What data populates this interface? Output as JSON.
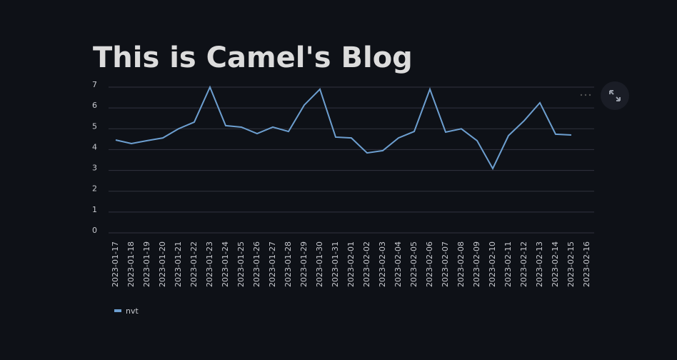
{
  "chart_data": {
    "type": "line",
    "title": "This is Camel's Blog",
    "x": [
      "2023-01-17",
      "2023-01-18",
      "2023-01-19",
      "2023-01-20",
      "2023-01-21",
      "2023-01-22",
      "2023-01-23",
      "2023-01-24",
      "2023-01-25",
      "2023-01-26",
      "2023-01-27",
      "2023-01-28",
      "2023-01-29",
      "2023-01-30",
      "2023-01-31",
      "2023-02-01",
      "2023-02-02",
      "2023-02-03",
      "2023-02-04",
      "2023-02-05",
      "2023-02-06",
      "2023-02-07",
      "2023-02-08",
      "2023-02-09",
      "2023-02-10",
      "2023-02-11",
      "2023-02-12",
      "2023-02-13",
      "2023-02-14",
      "2023-02-15",
      "2023-02-16"
    ],
    "series": [
      {
        "name": "nvt",
        "color": "#6d9fd0",
        "values": [
          4.46,
          4.29,
          4.43,
          4.56,
          5.0,
          5.32,
          7.0,
          5.15,
          5.08,
          4.77,
          5.08,
          4.87,
          6.14,
          6.9,
          4.6,
          4.56,
          3.84,
          3.95,
          4.56,
          4.87,
          6.9,
          4.84,
          5.0,
          4.43,
          3.09,
          4.67,
          5.39,
          6.25,
          4.74,
          4.7,
          null
        ]
      }
    ],
    "ylim": [
      0,
      7
    ],
    "yticks": [
      0,
      1,
      2,
      3,
      4,
      5,
      6,
      7
    ],
    "grid": true
  }
}
